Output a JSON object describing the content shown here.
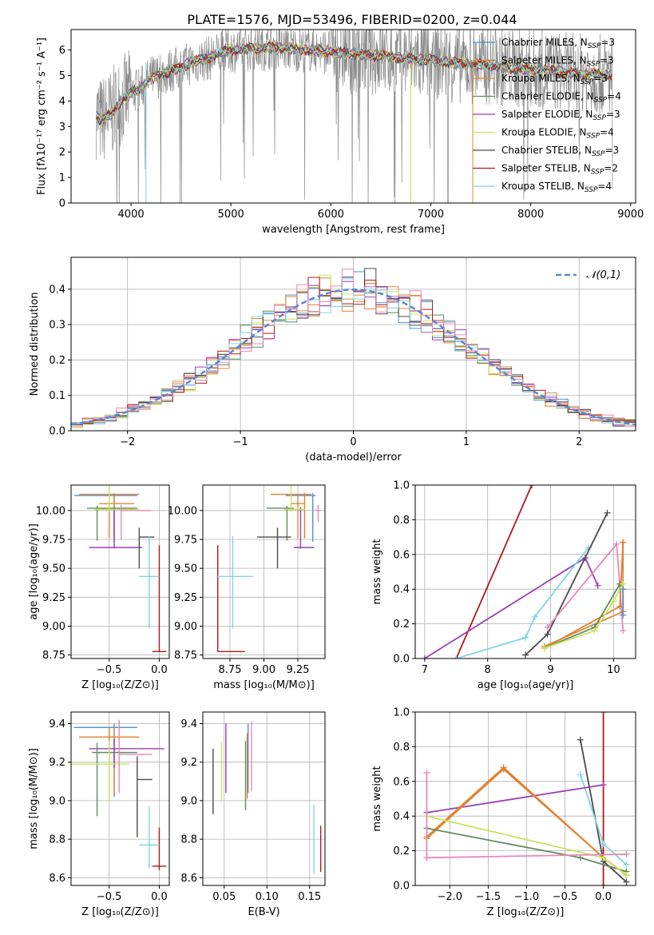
{
  "page_title": "PLATE=1576, MJD=53496, FIBERID=0200, z=0.044",
  "colors": {
    "Chabrier MILES": "#4e8fd6",
    "Salpeter MILES": "#e87d2b",
    "Kroupa MILES": "#d98b3a",
    "Chabrier ELODIE": "#5f8c5f",
    "Salpeter ELODIE": "#9c3fb3",
    "Kroupa ELODIE": "#c9e35a",
    "Chabrier STELIB": "#4a4a4a",
    "Salpeter STELIB": "#b01818",
    "Kroupa STELIB": "#7fd6df",
    "pink": "#e887b8",
    "gauss": "#5b86d8",
    "data_gray": "#8a8a8a",
    "grid": "#b0b0b0"
  },
  "chart_data": [
    {
      "id": "spectrum",
      "type": "line",
      "title": "PLATE=1576, MJD=53496, FIBERID=0200, z=0.044",
      "xlabel": "wavelength [Angstrom, rest frame]",
      "ylabel": "Flux [fλ10⁻¹⁷ erg cm⁻² s⁻¹ A⁻¹]",
      "xlim": [
        3400,
        9050
      ],
      "ylim": [
        0,
        6.8
      ],
      "xticks": [
        4000,
        5000,
        6000,
        7000,
        8000,
        9000
      ],
      "yticks": [
        0,
        1,
        2,
        3,
        4,
        5,
        6
      ],
      "grid": false,
      "legend_position": "right",
      "legend": [
        {
          "key": "Chabrier MILES",
          "label": "Chabrier MILES, N",
          "sub": "SSP",
          "n": "=3"
        },
        {
          "key": "Salpeter MILES",
          "label": "Salpeter MILES, N",
          "sub": "SSP",
          "n": "=3"
        },
        {
          "key": "Kroupa MILES",
          "label": "Kroupa MILES, N",
          "sub": "SSP",
          "n": "=3"
        },
        {
          "key": "Chabrier ELODIE",
          "label": "Chabrier ELODIE, N",
          "sub": "SSP",
          "n": "=4"
        },
        {
          "key": "Salpeter ELODIE",
          "label": "Salpeter ELODIE, N",
          "sub": "SSP",
          "n": "=3"
        },
        {
          "key": "Kroupa ELODIE",
          "label": "Kroupa ELODIE, N",
          "sub": "SSP",
          "n": "=4"
        },
        {
          "key": "Chabrier STELIB",
          "label": "Chabrier STELIB, N",
          "sub": "SSP",
          "n": "=3"
        },
        {
          "key": "Salpeter STELIB",
          "label": "Salpeter STELIB, N",
          "sub": "SSP",
          "n": "=2"
        },
        {
          "key": "Kroupa STELIB",
          "label": "Kroupa STELIB, N",
          "sub": "SSP",
          "n": "=4"
        }
      ],
      "continuum": {
        "x": [
          3650,
          3700,
          3800,
          3900,
          4000,
          4100,
          4200,
          4300,
          4400,
          4500,
          4600,
          4700,
          4800,
          4900,
          5000,
          5200,
          5400,
          5600,
          5800,
          6000,
          6200,
          6400,
          6600,
          6800,
          7000,
          7200,
          7400,
          7600,
          7800,
          8000,
          8200,
          8400,
          8600,
          8800
        ],
        "y": [
          3.5,
          3.2,
          3.5,
          4.0,
          4.3,
          4.5,
          4.9,
          5.0,
          5.2,
          5.3,
          5.5,
          5.6,
          5.7,
          5.9,
          6.0,
          6.05,
          6.1,
          6.05,
          6.0,
          5.95,
          5.85,
          5.8,
          5.75,
          5.65,
          5.6,
          5.5,
          5.45,
          5.4,
          5.3,
          5.25,
          5.2,
          5.1,
          5.05,
          5.0
        ]
      }
    },
    {
      "id": "residuals",
      "type": "bar",
      "xlabel": "(data-model)/error",
      "ylabel": "Normed distribution",
      "xlim": [
        -2.5,
        2.5
      ],
      "ylim": [
        0,
        0.49
      ],
      "xticks": [
        -2,
        -1,
        0,
        1,
        2
      ],
      "yticks": [
        0.0,
        0.1,
        0.2,
        0.3,
        0.4
      ],
      "grid": true,
      "legend_position": "top-right",
      "legend_label": "𝒩(0,1)",
      "bin_width": 0.1
    },
    {
      "id": "z_age",
      "type": "scatter",
      "xlabel": "Z [log₁₀(Z/Z⊙)]",
      "ylabel": "age  [log₁₀(age/yr)]",
      "xlim": [
        -0.88,
        0.1
      ],
      "ylim": [
        8.72,
        10.22
      ],
      "xticks": [
        -0.5,
        0.0
      ],
      "yticks": [
        8.75,
        9.0,
        9.25,
        9.5,
        9.75,
        10.0
      ],
      "grid": true,
      "points": [
        {
          "key": "Chabrier MILES",
          "x": -0.45,
          "xerr": [
            0.4,
            0.23
          ],
          "y": 10.13,
          "yerr": [
            0.4,
            0.02
          ]
        },
        {
          "key": "Salpeter MILES",
          "x": -0.5,
          "xerr": [
            0.3,
            0.3
          ],
          "y": 10.14,
          "yerr": [
            0.38,
            0.01
          ]
        },
        {
          "key": "Kroupa MILES",
          "x": -0.45,
          "xerr": [
            0.15,
            0.2
          ],
          "y": 10.06,
          "yerr": [
            0.3,
            0.08
          ]
        },
        {
          "key": "Chabrier ELODIE",
          "x": -0.62,
          "xerr": [
            0.1,
            0.4
          ],
          "y": 10.02,
          "yerr": [
            0.28,
            0.02
          ]
        },
        {
          "key": "Salpeter ELODIE",
          "x": -0.45,
          "xerr": [
            0.25,
            0.28
          ],
          "y": 9.68,
          "yerr": [
            0.01,
            0.35
          ]
        },
        {
          "key": "Kroupa ELODIE",
          "x": -0.5,
          "xerr": [
            0.15,
            0.3
          ],
          "y": 10.01,
          "yerr": [
            0.02,
            0.25
          ]
        },
        {
          "key": "Chabrier STELIB",
          "x": -0.2,
          "xerr": [
            0.0,
            0.15
          ],
          "y": 9.77,
          "yerr": [
            0.27,
            0.08
          ]
        },
        {
          "key": "Salpeter STELIB",
          "x": 0.0,
          "xerr": [
            0.07,
            0.07
          ],
          "y": 8.78,
          "yerr": [
            0.0,
            0.92
          ]
        },
        {
          "key": "Kroupa STELIB",
          "x": -0.1,
          "xerr": [
            0.1,
            0.1
          ],
          "y": 9.43,
          "yerr": [
            0.45,
            0.35
          ]
        },
        {
          "key": "pink",
          "x": -0.38,
          "xerr": [
            0.0,
            0.3
          ],
          "y": 10.0,
          "yerr": [
            0.25,
            0.05
          ]
        }
      ]
    },
    {
      "id": "mass_age",
      "type": "scatter",
      "xlabel": "mass [log₁₀(M/M⊙)]",
      "ylabel": "",
      "xlim": [
        8.55,
        9.45
      ],
      "ylim": [
        8.72,
        10.22
      ],
      "xticks": [
        8.75,
        9.0,
        9.25
      ],
      "yticks": [
        8.75,
        9.0,
        9.25,
        9.5,
        9.75,
        10.0
      ],
      "grid": true,
      "points": [
        {
          "key": "Chabrier MILES",
          "x": 9.36,
          "xerr": [
            0.2,
            0.02
          ],
          "y": 10.13,
          "yerr": [
            0.4,
            0.02
          ]
        },
        {
          "key": "Salpeter MILES",
          "x": 9.3,
          "xerr": [
            0.25,
            0.05
          ],
          "y": 10.14,
          "yerr": [
            0.38,
            0.01
          ]
        },
        {
          "key": "Kroupa MILES",
          "x": 9.25,
          "xerr": [
            0.05,
            0.05
          ],
          "y": 10.06,
          "yerr": [
            0.3,
            0.08
          ]
        },
        {
          "key": "Chabrier ELODIE",
          "x": 9.17,
          "xerr": [
            0.15,
            0.05
          ],
          "y": 10.02,
          "yerr": [
            0.28,
            0.02
          ]
        },
        {
          "key": "Salpeter ELODIE",
          "x": 9.27,
          "xerr": [
            0.05,
            0.1
          ],
          "y": 9.68,
          "yerr": [
            0.01,
            0.35
          ]
        },
        {
          "key": "Kroupa ELODIE",
          "x": 9.2,
          "xerr": [
            0.05,
            0.1
          ],
          "y": 10.01,
          "yerr": [
            0.02,
            0.25
          ]
        },
        {
          "key": "Chabrier STELIB",
          "x": 9.1,
          "xerr": [
            0.15,
            0.1
          ],
          "y": 9.77,
          "yerr": [
            0.27,
            0.08
          ]
        },
        {
          "key": "Salpeter STELIB",
          "x": 8.66,
          "xerr": [
            0.0,
            0.2
          ],
          "y": 8.78,
          "yerr": [
            0.0,
            0.92
          ]
        },
        {
          "key": "Kroupa STELIB",
          "x": 8.77,
          "xerr": [
            0.12,
            0.15
          ],
          "y": 9.43,
          "yerr": [
            0.45,
            0.35
          ]
        },
        {
          "key": "pink",
          "x": 9.4,
          "xerr": [
            0.02,
            0.02
          ],
          "y": 10.0,
          "yerr": [
            0.1,
            0.05
          ]
        }
      ]
    },
    {
      "id": "age_weight",
      "type": "line",
      "xlabel": "age  [log₁₀(age/yr)]",
      "ylabel": "mass weight",
      "xlim": [
        6.85,
        10.35
      ],
      "ylim": [
        0,
        1.0
      ],
      "xticks": [
        7,
        8,
        9,
        10
      ],
      "yticks": [
        0.0,
        0.2,
        0.4,
        0.6,
        0.8,
        1.0
      ],
      "grid": true,
      "series": [
        {
          "key": "Salpeter STELIB",
          "x": [
            7.5,
            8.7
          ],
          "y": [
            0.0,
            1.0
          ]
        },
        {
          "key": "Salpeter ELODIE",
          "x": [
            7.0,
            9.55,
            9.75
          ],
          "y": [
            0.0,
            0.58,
            0.42
          ]
        },
        {
          "key": "Kroupa STELIB",
          "x": [
            7.5,
            8.6,
            8.75,
            9.6
          ],
          "y": [
            0.0,
            0.12,
            0.24,
            0.64
          ]
        },
        {
          "key": "Chabrier STELIB",
          "x": [
            8.6,
            8.95,
            9.9
          ],
          "y": [
            0.02,
            0.14,
            0.84
          ]
        },
        {
          "key": "pink",
          "x": [
            8.95,
            10.05,
            10.15
          ],
          "y": [
            0.18,
            0.66,
            0.16
          ]
        },
        {
          "key": "Kroupa MILES",
          "x": [
            8.9,
            10.15,
            10.15
          ],
          "y": [
            0.07,
            0.27,
            0.67
          ]
        },
        {
          "key": "Salpeter MILES",
          "x": [
            8.9,
            10.1,
            10.15
          ],
          "y": [
            0.06,
            0.3,
            0.67
          ]
        },
        {
          "key": "Chabrier ELODIE",
          "x": [
            8.9,
            9.7,
            10.1
          ],
          "y": [
            0.06,
            0.18,
            0.43
          ]
        },
        {
          "key": "Kroupa ELODIE",
          "x": [
            8.9,
            9.7,
            10.0,
            10.15
          ],
          "y": [
            0.06,
            0.16,
            0.33,
            0.43
          ]
        },
        {
          "key": "Chabrier MILES",
          "x": [
            10.15,
            10.15
          ],
          "y": [
            0.25,
            0.4
          ]
        }
      ]
    },
    {
      "id": "z_mass",
      "type": "scatter",
      "xlabel": "Z [log₁₀(Z/Z⊙)]",
      "ylabel": "mass [log₁₀(M/M⊙)]",
      "xlim": [
        -0.88,
        0.1
      ],
      "ylim": [
        8.56,
        9.46
      ],
      "xticks": [
        -0.5,
        0.0
      ],
      "yticks": [
        8.6,
        8.8,
        9.0,
        9.2,
        9.4
      ],
      "grid": true,
      "points": [
        {
          "key": "Chabrier MILES",
          "x": -0.45,
          "xerr": [
            0.4,
            0.23
          ],
          "y": 9.38,
          "yerr": [
            0.36,
            0.02
          ]
        },
        {
          "key": "Salpeter MILES",
          "x": -0.5,
          "xerr": [
            0.3,
            0.3
          ],
          "y": 9.33,
          "yerr": [
            0.33,
            0.05
          ]
        },
        {
          "key": "Kroupa MILES",
          "x": -0.45,
          "xerr": [
            0.15,
            0.2
          ],
          "y": 9.33,
          "yerr": [
            0.3,
            0.05
          ]
        },
        {
          "key": "Chabrier ELODIE",
          "x": -0.62,
          "xerr": [
            0.05,
            0.4
          ],
          "y": 9.25,
          "yerr": [
            0.33,
            0.05
          ]
        },
        {
          "key": "Salpeter ELODIE",
          "x": -0.45,
          "xerr": [
            0.25,
            0.5
          ],
          "y": 9.27,
          "yerr": [
            0.1,
            0.05
          ]
        },
        {
          "key": "Kroupa ELODIE",
          "x": -0.5,
          "xerr": [
            0.38,
            0.2
          ],
          "y": 9.19,
          "yerr": [
            0.2,
            0.12
          ]
        },
        {
          "key": "Chabrier STELIB",
          "x": -0.22,
          "xerr": [
            0.0,
            0.15
          ],
          "y": 9.11,
          "yerr": [
            0.3,
            0.12
          ]
        },
        {
          "key": "Salpeter STELIB",
          "x": 0.0,
          "xerr": [
            0.07,
            0.07
          ],
          "y": 8.66,
          "yerr": [
            0.02,
            0.2
          ]
        },
        {
          "key": "Kroupa STELIB",
          "x": -0.1,
          "xerr": [
            0.1,
            0.1
          ],
          "y": 8.77,
          "yerr": [
            0.12,
            0.2
          ]
        },
        {
          "key": "pink",
          "x": -0.4,
          "xerr": [
            0.0,
            0.33
          ],
          "y": 9.24,
          "yerr": [
            0.2,
            0.18
          ]
        }
      ]
    },
    {
      "id": "ebv_mass",
      "type": "scatter",
      "xlabel": "E(B-V)",
      "ylabel": "",
      "xlim": [
        0.025,
        0.168
      ],
      "ylim": [
        8.56,
        9.46
      ],
      "xticks": [
        0.05,
        0.1,
        0.15
      ],
      "yticks": [
        8.6,
        8.8,
        9.0,
        9.2,
        9.4
      ],
      "grid": true,
      "points": [
        {
          "key": "Chabrier STELIB",
          "x": 0.037,
          "y": 9.1,
          "yerr": [
            0.17,
            0.17
          ]
        },
        {
          "key": "Kroupa ELODIE",
          "x": 0.047,
          "y": 9.15,
          "yerr": [
            0.15,
            0.15
          ]
        },
        {
          "key": "Salpeter ELODIE",
          "x": 0.052,
          "y": 9.22,
          "yerr": [
            0.18,
            0.18
          ]
        },
        {
          "key": "Chabrier ELODIE",
          "x": 0.075,
          "y": 9.13,
          "yerr": [
            0.18,
            0.18
          ]
        },
        {
          "key": "Salpeter MILES",
          "x": 0.077,
          "y": 9.18,
          "yerr": [
            0.17,
            0.17
          ]
        },
        {
          "key": "Chabrier MILES",
          "x": 0.078,
          "y": 9.22,
          "yerr": [
            0.18,
            0.18
          ]
        },
        {
          "key": "pink",
          "x": 0.082,
          "y": 9.23,
          "yerr": [
            0.18,
            0.18
          ]
        },
        {
          "key": "Kroupa STELIB",
          "x": 0.155,
          "y": 8.8,
          "yerr": [
            0.18,
            0.18
          ]
        },
        {
          "key": "Salpeter STELIB",
          "x": 0.163,
          "y": 8.75,
          "yerr": [
            0.12,
            0.12
          ]
        }
      ]
    },
    {
      "id": "z_weight",
      "type": "line",
      "xlabel": "Z [log₁₀(Z/Z⊙)]",
      "ylabel": "mass weight",
      "xlim": [
        -2.45,
        0.42
      ],
      "ylim": [
        0,
        1.0
      ],
      "xticks": [
        -2.0,
        -1.5,
        -1.0,
        -0.5,
        0.0
      ],
      "yticks": [
        0.0,
        0.2,
        0.4,
        0.6,
        0.8,
        1.0
      ],
      "grid": true,
      "series": [
        {
          "key": "Salpeter STELIB",
          "x": [
            0.0,
            0.0
          ],
          "y": [
            0.0,
            1.0
          ]
        },
        {
          "key": "Chabrier STELIB",
          "x": [
            -0.3,
            0.0,
            0.3
          ],
          "y": [
            0.84,
            0.14,
            0.02
          ]
        },
        {
          "key": "Kroupa STELIB",
          "x": [
            -0.3,
            0.0,
            0.3
          ],
          "y": [
            0.64,
            0.24,
            0.12
          ]
        },
        {
          "key": "Salpeter ELODIE",
          "x": [
            -2.3,
            0.0
          ],
          "y": [
            0.42,
            0.58
          ]
        },
        {
          "key": "Kroupa MILES",
          "x": [
            -2.3,
            -1.3,
            0.0,
            0.3
          ],
          "y": [
            0.27,
            0.67,
            0.16,
            0.06
          ]
        },
        {
          "key": "Salpeter MILES",
          "x": [
            -2.3,
            -1.3,
            0.0,
            0.3
          ],
          "y": [
            0.28,
            0.68,
            0.16,
            0.06
          ]
        },
        {
          "key": "Chabrier ELODIE",
          "x": [
            -2.3,
            -0.3,
            0.3
          ],
          "y": [
            0.33,
            0.16,
            0.08
          ]
        },
        {
          "key": "Kroupa ELODIE",
          "x": [
            -2.3,
            0.0,
            0.3
          ],
          "y": [
            0.4,
            0.16,
            0.06
          ]
        },
        {
          "key": "pink",
          "x": [
            -2.3,
            0.3
          ],
          "y": [
            0.16,
            0.18
          ]
        },
        {
          "key": "pink",
          "x": [
            -2.3,
            -2.3
          ],
          "y": [
            0.16,
            0.65
          ]
        }
      ]
    }
  ]
}
